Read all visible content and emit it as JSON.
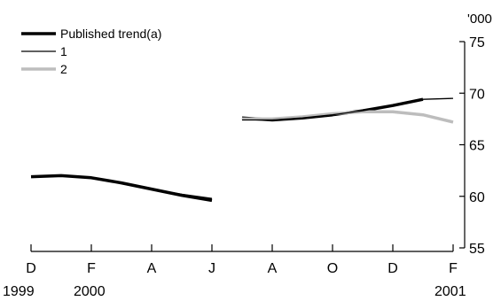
{
  "chart_data": {
    "type": "line",
    "title": "",
    "xlabel": "",
    "ylabel": "",
    "yunit": "'000",
    "ylim": [
      55,
      75
    ],
    "yticks": [
      55,
      60,
      65,
      70,
      75
    ],
    "y_axis_side": "right",
    "grid": false,
    "legend_position": "top-left",
    "x_ticks": [
      {
        "month": 0,
        "label": "D",
        "year": "1999"
      },
      {
        "month": 2,
        "label": "F",
        "year": "2000"
      },
      {
        "month": 4,
        "label": "A",
        "year": ""
      },
      {
        "month": 6,
        "label": "J",
        "year": ""
      },
      {
        "month": 8,
        "label": "A",
        "year": ""
      },
      {
        "month": 10,
        "label": "O",
        "year": ""
      },
      {
        "month": 12,
        "label": "D",
        "year": ""
      },
      {
        "month": 14,
        "label": "F",
        "year": "2001"
      }
    ],
    "x_unit_note": "month index: 0 = December 1999, 14 = February 2001",
    "series": [
      {
        "name": "Published trend(a)",
        "color": "#000000",
        "width": 3.5,
        "segments": [
          [
            [
              0,
              61.9
            ],
            [
              1,
              62.0
            ],
            [
              2,
              61.8
            ],
            [
              3,
              61.3
            ],
            [
              4,
              60.7
            ],
            [
              5,
              60.1
            ],
            [
              6,
              59.6
            ]
          ],
          [
            [
              7,
              67.6
            ],
            [
              8,
              67.4
            ],
            [
              9,
              67.6
            ],
            [
              10,
              67.9
            ],
            [
              11,
              68.3
            ],
            [
              12,
              68.8
            ],
            [
              13,
              69.4
            ]
          ]
        ]
      },
      {
        "name": "1",
        "color": "#000000",
        "width": 1.3,
        "segments": [
          [
            [
              0,
              61.9
            ],
            [
              1,
              62.0
            ],
            [
              2,
              61.8
            ],
            [
              3,
              61.3
            ],
            [
              4,
              60.7
            ],
            [
              5,
              60.2
            ],
            [
              6,
              59.8
            ]
          ],
          [
            [
              7,
              67.4
            ],
            [
              8,
              67.4
            ],
            [
              9,
              67.6
            ],
            [
              10,
              67.9
            ],
            [
              11,
              68.3
            ],
            [
              12,
              68.8
            ],
            [
              13,
              69.4
            ],
            [
              14,
              69.5
            ]
          ]
        ]
      },
      {
        "name": "2",
        "color": "#bdbdbd",
        "width": 3.5,
        "segments": [
          [
            [
              7,
              67.5
            ],
            [
              8,
              67.5
            ],
            [
              9,
              67.7
            ],
            [
              10,
              68.0
            ],
            [
              11,
              68.2
            ],
            [
              12,
              68.2
            ],
            [
              13,
              67.9
            ],
            [
              14,
              67.2
            ]
          ]
        ]
      }
    ]
  }
}
